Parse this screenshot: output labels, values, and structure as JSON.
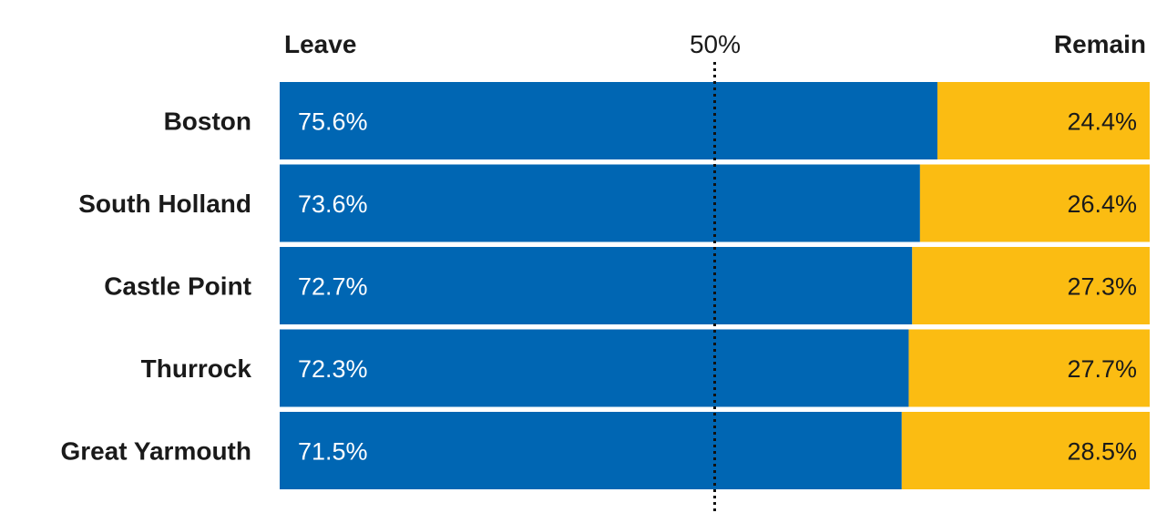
{
  "chart_data": {
    "type": "bar",
    "orientation": "horizontal",
    "stacked": true,
    "categories": [
      "Boston",
      "South Holland",
      "Castle Point",
      "Thurrock",
      "Great Yarmouth"
    ],
    "series": [
      {
        "name": "Leave",
        "values": [
          75.6,
          73.6,
          72.7,
          72.3,
          71.5
        ],
        "labels": [
          "75.6%",
          "73.6%",
          "72.7%",
          "72.3%",
          "71.5%"
        ],
        "color": "#0066b3"
      },
      {
        "name": "Remain",
        "values": [
          24.4,
          26.4,
          27.3,
          27.7,
          28.5
        ],
        "labels": [
          "24.4%",
          "26.4%",
          "27.3%",
          "27.7%",
          "28.5%"
        ],
        "color": "#fbbc12"
      }
    ],
    "xlim": [
      0,
      100
    ],
    "reference_line": {
      "value": 50,
      "label": "50%",
      "style": "dotted"
    },
    "legend": "top",
    "grid": false
  }
}
